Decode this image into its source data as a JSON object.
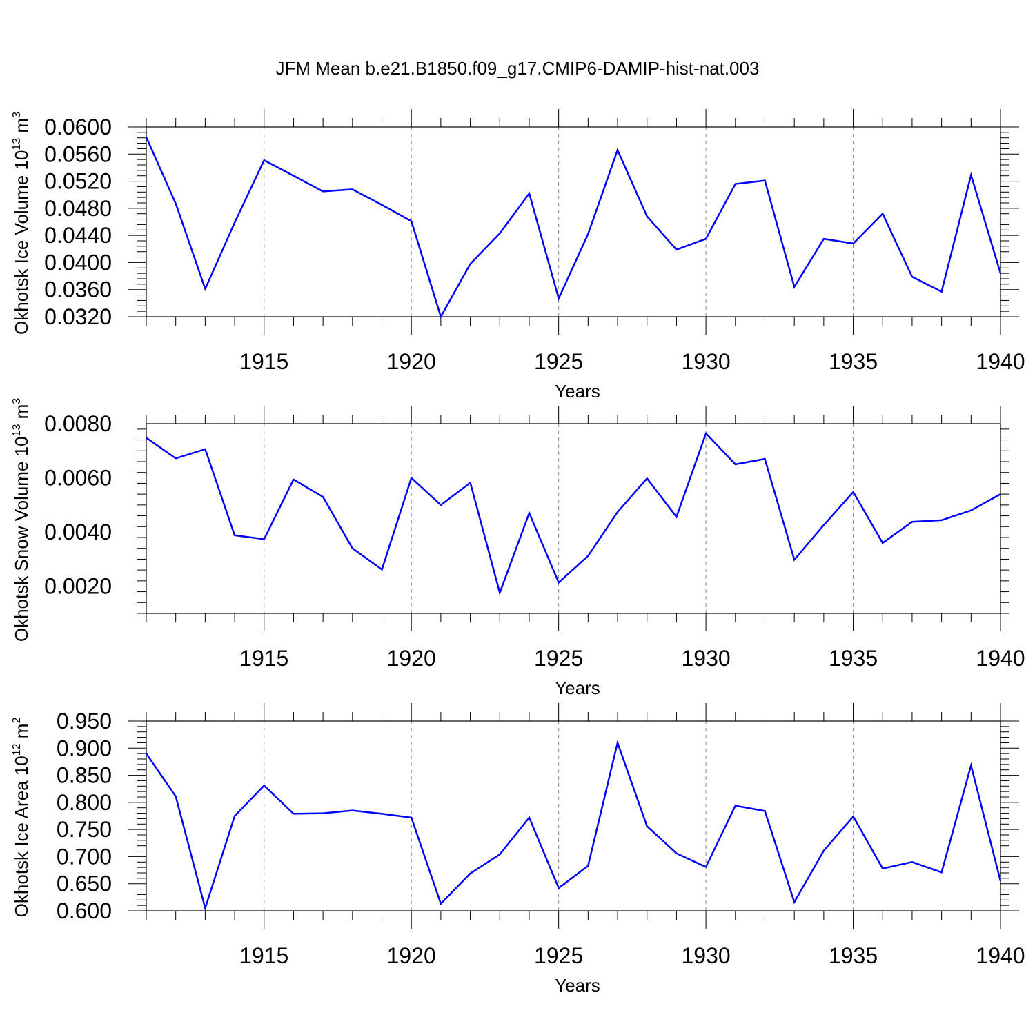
{
  "title": "JFM Mean b.e21.B1850.f09_g17.CMIP6-DAMIP-hist-nat.003",
  "series_color": "#0000ff",
  "chart_data": [
    {
      "type": "line",
      "title": "",
      "ylabel": "Okhotsk Ice Volume 10",
      "ylabel_exp": "13",
      "ylabel_unit": " m",
      "ylabel_unit_exp": "3",
      "xlabel": "Years",
      "xlim": [
        1911,
        1940
      ],
      "ylim": [
        0.032,
        0.06
      ],
      "yticks": [
        "0.0600",
        "0.0560",
        "0.0520",
        "0.0480",
        "0.0440",
        "0.0400",
        "0.0360",
        "0.0320"
      ],
      "ytick_values": [
        0.06,
        0.056,
        0.052,
        0.048,
        0.044,
        0.04,
        0.036,
        0.032
      ],
      "xticks": [
        "1915",
        "1920",
        "1925",
        "1930",
        "1935",
        "1940"
      ],
      "xtick_values": [
        1915,
        1920,
        1925,
        1930,
        1935,
        1940
      ],
      "grid": "vertical dashed",
      "x": [
        1911,
        1912,
        1913,
        1914,
        1915,
        1916,
        1917,
        1918,
        1919,
        1920,
        1921,
        1922,
        1923,
        1924,
        1925,
        1926,
        1927,
        1928,
        1929,
        1930,
        1931,
        1932,
        1933,
        1934,
        1935,
        1936,
        1937,
        1938,
        1939,
        1940
      ],
      "series": [
        {
          "values": [
            0.0585,
            0.0487,
            0.0361,
            0.0459,
            0.0551,
            0.0528,
            0.0505,
            0.0508,
            0.0485,
            0.0461,
            0.032,
            0.0398,
            0.0443,
            0.0502,
            0.0347,
            0.0442,
            0.0566,
            0.0468,
            0.0419,
            0.0435,
            0.0516,
            0.0521,
            0.0364,
            0.0435,
            0.0428,
            0.0472,
            0.0379,
            0.0357,
            0.0529,
            0.0384
          ]
        }
      ]
    },
    {
      "type": "line",
      "title": "",
      "ylabel": "Okhotsk Snow Volume 10",
      "ylabel_exp": "13",
      "ylabel_unit": " m",
      "ylabel_unit_exp": "3",
      "xlabel": "Years",
      "xlim": [
        1911,
        1940
      ],
      "ylim": [
        0.001,
        0.008
      ],
      "yticks": [
        "0.0080",
        "0.0060",
        "0.0040",
        "0.0020"
      ],
      "ytick_values": [
        0.008,
        0.006,
        0.004,
        0.002
      ],
      "xticks": [
        "1915",
        "1920",
        "1925",
        "1930",
        "1935",
        "1940"
      ],
      "xtick_values": [
        1915,
        1920,
        1925,
        1930,
        1935,
        1940
      ],
      "grid": "vertical dashed",
      "x": [
        1911,
        1912,
        1913,
        1914,
        1915,
        1916,
        1917,
        1918,
        1919,
        1920,
        1921,
        1922,
        1923,
        1924,
        1925,
        1926,
        1927,
        1928,
        1929,
        1930,
        1931,
        1932,
        1933,
        1934,
        1935,
        1936,
        1937,
        1938,
        1939,
        1940
      ],
      "series": [
        {
          "values": [
            0.00748,
            0.00672,
            0.00706,
            0.00388,
            0.00374,
            0.00594,
            0.0053,
            0.0034,
            0.00262,
            0.006,
            0.005,
            0.00582,
            0.00176,
            0.0047,
            0.00214,
            0.00312,
            0.00474,
            0.00598,
            0.00456,
            0.00764,
            0.0065,
            0.0067,
            0.00298,
            0.00426,
            0.00548,
            0.0036,
            0.00438,
            0.00444,
            0.0048,
            0.0054
          ]
        }
      ]
    },
    {
      "type": "line",
      "title": "",
      "ylabel": "Okhotsk Ice Area 10",
      "ylabel_exp": "12",
      "ylabel_unit": " m",
      "ylabel_unit_exp": "2",
      "xlabel": "Years",
      "xlim": [
        1911,
        1940
      ],
      "ylim": [
        0.6,
        0.95
      ],
      "yticks": [
        "0.950",
        "0.900",
        "0.850",
        "0.800",
        "0.750",
        "0.700",
        "0.650",
        "0.600"
      ],
      "ytick_values": [
        0.95,
        0.9,
        0.85,
        0.8,
        0.75,
        0.7,
        0.65,
        0.6
      ],
      "xticks": [
        "1915",
        "1920",
        "1925",
        "1930",
        "1935",
        "1940"
      ],
      "xtick_values": [
        1915,
        1920,
        1925,
        1930,
        1935,
        1940
      ],
      "grid": "vertical dashed",
      "x": [
        1911,
        1912,
        1913,
        1914,
        1915,
        1916,
        1917,
        1918,
        1919,
        1920,
        1921,
        1922,
        1923,
        1924,
        1925,
        1926,
        1927,
        1928,
        1929,
        1930,
        1931,
        1932,
        1933,
        1934,
        1935,
        1936,
        1937,
        1938,
        1939,
        1940
      ],
      "series": [
        {
          "values": [
            0.89,
            0.811,
            0.605,
            0.775,
            0.831,
            0.779,
            0.78,
            0.785,
            0.779,
            0.772,
            0.613,
            0.669,
            0.704,
            0.772,
            0.642,
            0.683,
            0.91,
            0.756,
            0.706,
            0.681,
            0.794,
            0.784,
            0.616,
            0.711,
            0.774,
            0.678,
            0.69,
            0.671,
            0.868,
            0.655
          ]
        }
      ]
    }
  ]
}
